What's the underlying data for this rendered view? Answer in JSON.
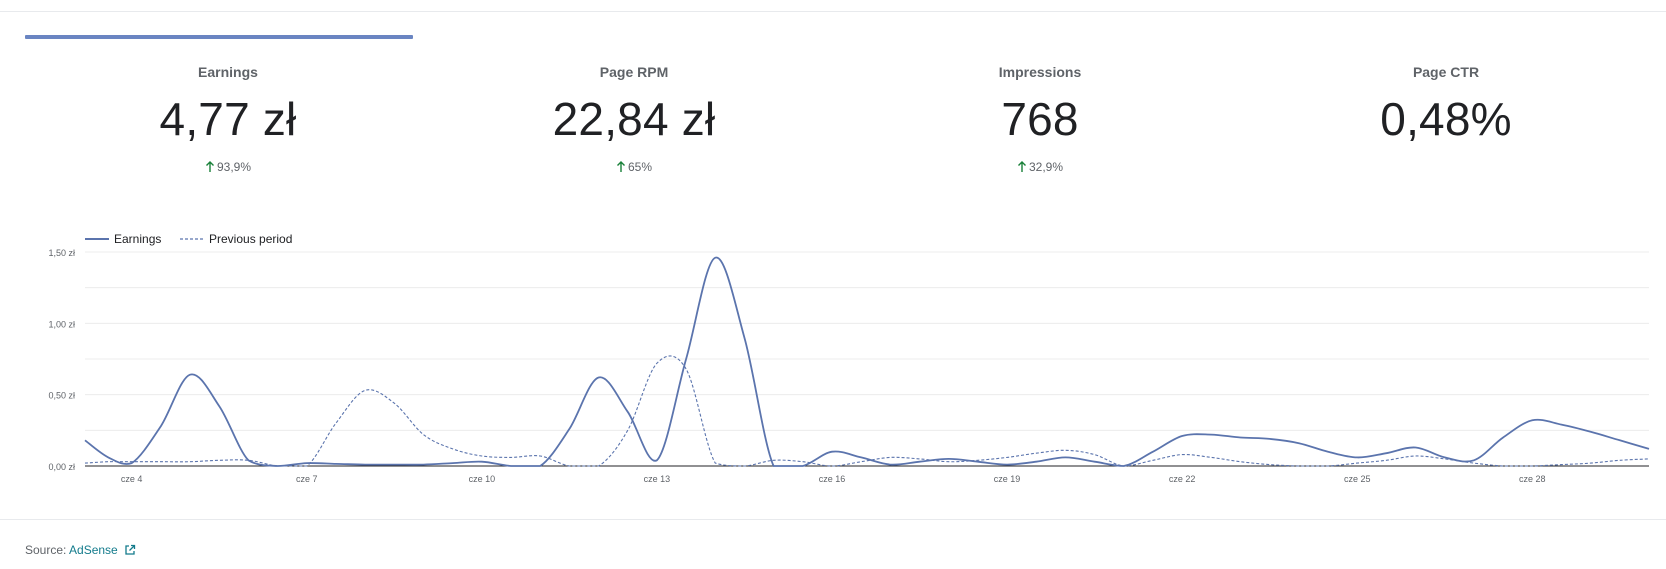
{
  "metrics": [
    {
      "label": "Earnings",
      "value": "4,77 zł",
      "change": "93,9%",
      "trend": "up"
    },
    {
      "label": "Page RPM",
      "value": "22,84 zł",
      "change": "65%",
      "trend": "up"
    },
    {
      "label": "Impressions",
      "value": "768",
      "change": "32,9%",
      "trend": "up"
    },
    {
      "label": "Page CTR",
      "value": "0,48%",
      "change": "",
      "trend": "none"
    }
  ],
  "colors": {
    "series": "#5b74ad",
    "trend_up": "#188038",
    "grid": "#ececec",
    "axis": "#202124"
  },
  "chart_data": {
    "type": "line",
    "legend": [
      "Earnings",
      "Previous period"
    ],
    "legend_position": "top-left",
    "yticks": [
      "0,00 zł",
      "0,50 zł",
      "1,00 zł",
      "1,50 zł"
    ],
    "ylim": [
      0,
      1.5
    ],
    "xticks": [
      {
        "label": "cze 4",
        "day": 4
      },
      {
        "label": "cze 7",
        "day": 7
      },
      {
        "label": "cze 10",
        "day": 10
      },
      {
        "label": "cze 13",
        "day": 13
      },
      {
        "label": "cze 16",
        "day": 16
      },
      {
        "label": "cze 19",
        "day": 19
      },
      {
        "label": "cze 22",
        "day": 22
      },
      {
        "label": "cze 25",
        "day": 25
      },
      {
        "label": "cze 28",
        "day": 28
      }
    ],
    "x": [
      3.2,
      3.6,
      4.0,
      4.5,
      5.0,
      5.5,
      6.0,
      6.5,
      7.0,
      7.5,
      8.0,
      8.5,
      9.0,
      9.5,
      10.0,
      10.5,
      11.0,
      11.5,
      12.0,
      12.5,
      13.0,
      13.5,
      14.0,
      14.5,
      15.0,
      15.5,
      16.0,
      16.5,
      17.0,
      17.5,
      18.0,
      18.5,
      19.0,
      19.5,
      20.0,
      20.5,
      21.0,
      21.5,
      22.0,
      22.5,
      23.0,
      23.5,
      24.0,
      24.5,
      25.0,
      25.5,
      26.0,
      26.5,
      27.0,
      27.5,
      28.0,
      28.5,
      29.0,
      29.5,
      30.0
    ],
    "series": [
      {
        "name": "Earnings",
        "style": "solid",
        "values": [
          0.18,
          0.06,
          0.02,
          0.28,
          0.64,
          0.42,
          0.04,
          0.0,
          0.02,
          0.015,
          0.01,
          0.01,
          0.01,
          0.02,
          0.03,
          0.0,
          0.0,
          0.26,
          0.62,
          0.38,
          0.04,
          0.75,
          1.46,
          0.9,
          0.0,
          0.0,
          0.1,
          0.06,
          0.01,
          0.03,
          0.05,
          0.03,
          0.01,
          0.03,
          0.06,
          0.03,
          0.0,
          0.1,
          0.21,
          0.22,
          0.2,
          0.19,
          0.16,
          0.1,
          0.06,
          0.09,
          0.13,
          0.06,
          0.04,
          0.2,
          0.32,
          0.29,
          0.24,
          0.18,
          0.12
        ]
      },
      {
        "name": "Previous period",
        "style": "dashed",
        "values": [
          0.02,
          0.03,
          0.03,
          0.03,
          0.03,
          0.04,
          0.04,
          0.0,
          0.0,
          0.3,
          0.53,
          0.44,
          0.22,
          0.12,
          0.07,
          0.06,
          0.07,
          0.0,
          0.0,
          0.25,
          0.72,
          0.68,
          0.02,
          0.0,
          0.04,
          0.03,
          0.0,
          0.03,
          0.06,
          0.05,
          0.03,
          0.04,
          0.06,
          0.09,
          0.11,
          0.08,
          0.0,
          0.04,
          0.08,
          0.06,
          0.03,
          0.01,
          0.0,
          0.0,
          0.02,
          0.04,
          0.07,
          0.05,
          0.02,
          0.0,
          0.0,
          0.01,
          0.02,
          0.04,
          0.05
        ]
      }
    ]
  },
  "footer": {
    "source_label": "Source:",
    "source_link": "AdSense"
  }
}
